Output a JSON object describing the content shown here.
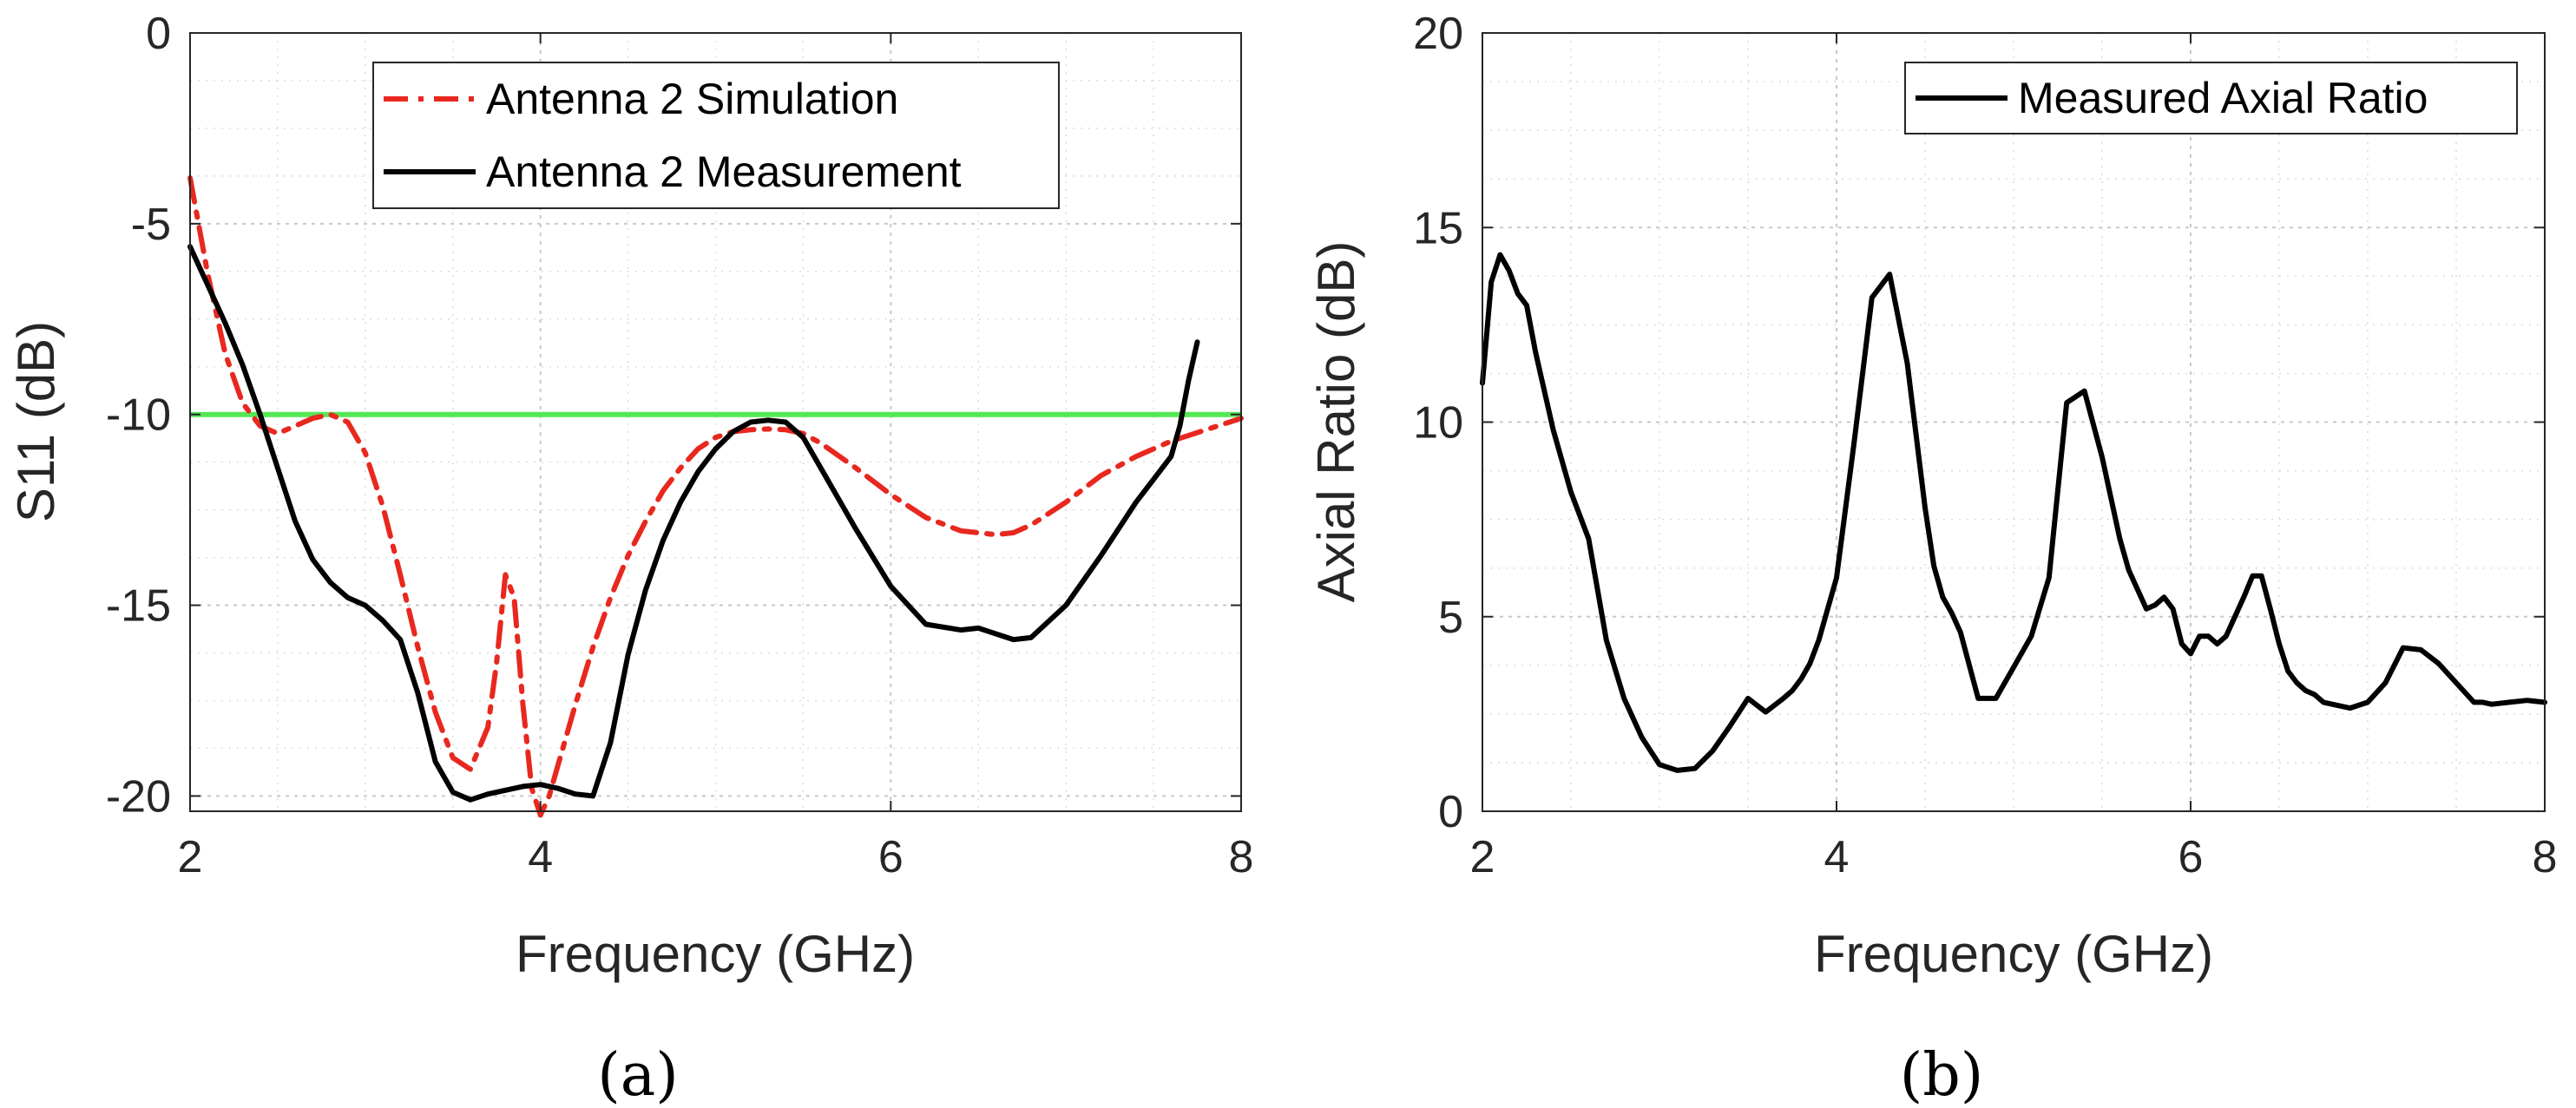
{
  "chart_data": [
    {
      "type": "line",
      "caption": "(a)",
      "xlabel": "Frequency (GHz)",
      "ylabel": "S11 (dB)",
      "xlim": [
        2,
        8
      ],
      "ylim": [
        -20.4,
        0
      ],
      "xticks": [
        2,
        4,
        6,
        8
      ],
      "xtick_labels": [
        "2",
        "4",
        "6",
        "8"
      ],
      "yticks": [
        0,
        -5,
        -10,
        -15,
        -20
      ],
      "ytick_labels": [
        "0",
        "-5",
        "-10",
        "-15",
        "-20"
      ],
      "grid": true,
      "minor_grid": true,
      "legend_position": "top-center",
      "reference_line": {
        "y": -10,
        "color": "#55e855"
      },
      "series": [
        {
          "name": "Antenna 2 Simulation",
          "color": "#e8281f",
          "style": "dash-dot",
          "x": [
            2.0,
            2.1,
            2.2,
            2.3,
            2.4,
            2.5,
            2.6,
            2.7,
            2.8,
            2.9,
            3.0,
            3.1,
            3.2,
            3.3,
            3.4,
            3.5,
            3.6,
            3.7,
            3.75,
            3.8,
            3.85,
            3.9,
            3.95,
            4.0,
            4.05,
            4.1,
            4.2,
            4.3,
            4.4,
            4.5,
            4.6,
            4.7,
            4.8,
            4.9,
            5.0,
            5.1,
            5.2,
            5.3,
            5.4,
            5.5,
            5.6,
            5.8,
            6.0,
            6.2,
            6.4,
            6.6,
            6.7,
            6.8,
            7.0,
            7.2,
            7.4,
            7.6,
            7.8,
            8.0
          ],
          "values": [
            -3.8,
            -6.3,
            -8.4,
            -9.7,
            -10.3,
            -10.5,
            -10.3,
            -10.1,
            -10.0,
            -10.2,
            -11.0,
            -12.4,
            -14.2,
            -16.1,
            -17.8,
            -19.0,
            -19.3,
            -18.2,
            -16.5,
            -14.2,
            -14.8,
            -17.6,
            -19.8,
            -20.5,
            -20.0,
            -19.2,
            -17.6,
            -16.1,
            -14.8,
            -13.7,
            -12.8,
            -12.0,
            -11.4,
            -10.9,
            -10.6,
            -10.45,
            -10.4,
            -10.38,
            -10.4,
            -10.5,
            -10.75,
            -11.4,
            -12.1,
            -12.7,
            -13.05,
            -13.15,
            -13.1,
            -12.9,
            -12.3,
            -11.6,
            -11.1,
            -10.7,
            -10.4,
            -10.1
          ]
        },
        {
          "name": "Antenna 2 Measurement",
          "color": "#000000",
          "style": "solid",
          "x": [
            2.0,
            2.1,
            2.2,
            2.3,
            2.4,
            2.5,
            2.6,
            2.7,
            2.8,
            2.9,
            3.0,
            3.1,
            3.2,
            3.3,
            3.4,
            3.5,
            3.6,
            3.7,
            3.8,
            3.9,
            4.0,
            4.1,
            4.2,
            4.3,
            4.4,
            4.5,
            4.6,
            4.7,
            4.8,
            4.9,
            5.0,
            5.1,
            5.2,
            5.3,
            5.4,
            5.5,
            5.6,
            5.8,
            6.0,
            6.2,
            6.4,
            6.5,
            6.6,
            6.7,
            6.8,
            7.0,
            7.2,
            7.4,
            7.5,
            7.6,
            7.65,
            7.7,
            7.75
          ],
          "values": [
            -5.6,
            -6.6,
            -7.6,
            -8.7,
            -10.0,
            -11.4,
            -12.8,
            -13.8,
            -14.4,
            -14.8,
            -15.0,
            -15.4,
            -15.9,
            -17.3,
            -19.1,
            -19.9,
            -20.1,
            -19.95,
            -19.85,
            -19.75,
            -19.7,
            -19.8,
            -19.95,
            -20.0,
            -18.6,
            -16.3,
            -14.6,
            -13.3,
            -12.3,
            -11.5,
            -10.9,
            -10.45,
            -10.2,
            -10.15,
            -10.2,
            -10.6,
            -11.4,
            -13.0,
            -14.5,
            -15.5,
            -15.65,
            -15.6,
            -15.75,
            -15.9,
            -15.85,
            -15.0,
            -13.7,
            -12.3,
            -11.7,
            -11.1,
            -10.3,
            -9.1,
            -8.1
          ]
        }
      ]
    },
    {
      "type": "line",
      "caption": "(b)",
      "xlabel": "Frequency (GHz)",
      "ylabel": "Axial Ratio (dB)",
      "xlim": [
        2,
        8
      ],
      "ylim": [
        0,
        20
      ],
      "xticks": [
        2,
        4,
        6,
        8
      ],
      "xtick_labels": [
        "2",
        "4",
        "6",
        "8"
      ],
      "yticks": [
        0,
        5,
        10,
        15,
        20
      ],
      "ytick_labels": [
        "0",
        "5",
        "10",
        "15",
        "20"
      ],
      "grid": true,
      "minor_grid": true,
      "legend_position": "top-right",
      "series": [
        {
          "name": "Measured Axial Ratio",
          "color": "#000000",
          "style": "solid",
          "x": [
            2.0,
            2.05,
            2.1,
            2.15,
            2.2,
            2.25,
            2.3,
            2.4,
            2.5,
            2.6,
            2.7,
            2.8,
            2.9,
            3.0,
            3.1,
            3.2,
            3.3,
            3.4,
            3.5,
            3.6,
            3.7,
            3.75,
            3.8,
            3.85,
            3.9,
            4.0,
            4.1,
            4.2,
            4.3,
            4.4,
            4.5,
            4.55,
            4.6,
            4.65,
            4.7,
            4.8,
            4.9,
            5.0,
            5.1,
            5.2,
            5.3,
            5.4,
            5.5,
            5.6,
            5.65,
            5.7,
            5.75,
            5.8,
            5.85,
            5.9,
            5.95,
            6.0,
            6.05,
            6.1,
            6.15,
            6.2,
            6.25,
            6.3,
            6.35,
            6.4,
            6.45,
            6.5,
            6.55,
            6.6,
            6.65,
            6.7,
            6.75,
            6.8,
            6.9,
            7.0,
            7.1,
            7.2,
            7.3,
            7.4,
            7.5,
            7.6,
            7.65,
            7.7,
            7.8,
            7.9,
            8.0
          ],
          "values": [
            11.0,
            13.6,
            14.3,
            13.9,
            13.3,
            13.0,
            11.8,
            9.8,
            8.2,
            7.0,
            4.4,
            2.9,
            1.9,
            1.2,
            1.05,
            1.1,
            1.55,
            2.2,
            2.9,
            2.55,
            2.9,
            3.1,
            3.4,
            3.8,
            4.4,
            6.0,
            9.5,
            13.2,
            13.8,
            11.5,
            7.8,
            6.3,
            5.5,
            5.1,
            4.6,
            2.9,
            2.9,
            3.7,
            4.5,
            6.0,
            10.5,
            10.8,
            9.1,
            7.0,
            6.2,
            5.7,
            5.2,
            5.3,
            5.5,
            5.2,
            4.3,
            4.05,
            4.5,
            4.5,
            4.3,
            4.5,
            5.0,
            5.5,
            6.05,
            6.05,
            5.2,
            4.3,
            3.6,
            3.3,
            3.1,
            3.0,
            2.8,
            2.75,
            2.65,
            2.8,
            3.3,
            4.2,
            4.15,
            3.8,
            3.3,
            2.8,
            2.8,
            2.75,
            2.8,
            2.85,
            2.8
          ]
        }
      ]
    }
  ]
}
